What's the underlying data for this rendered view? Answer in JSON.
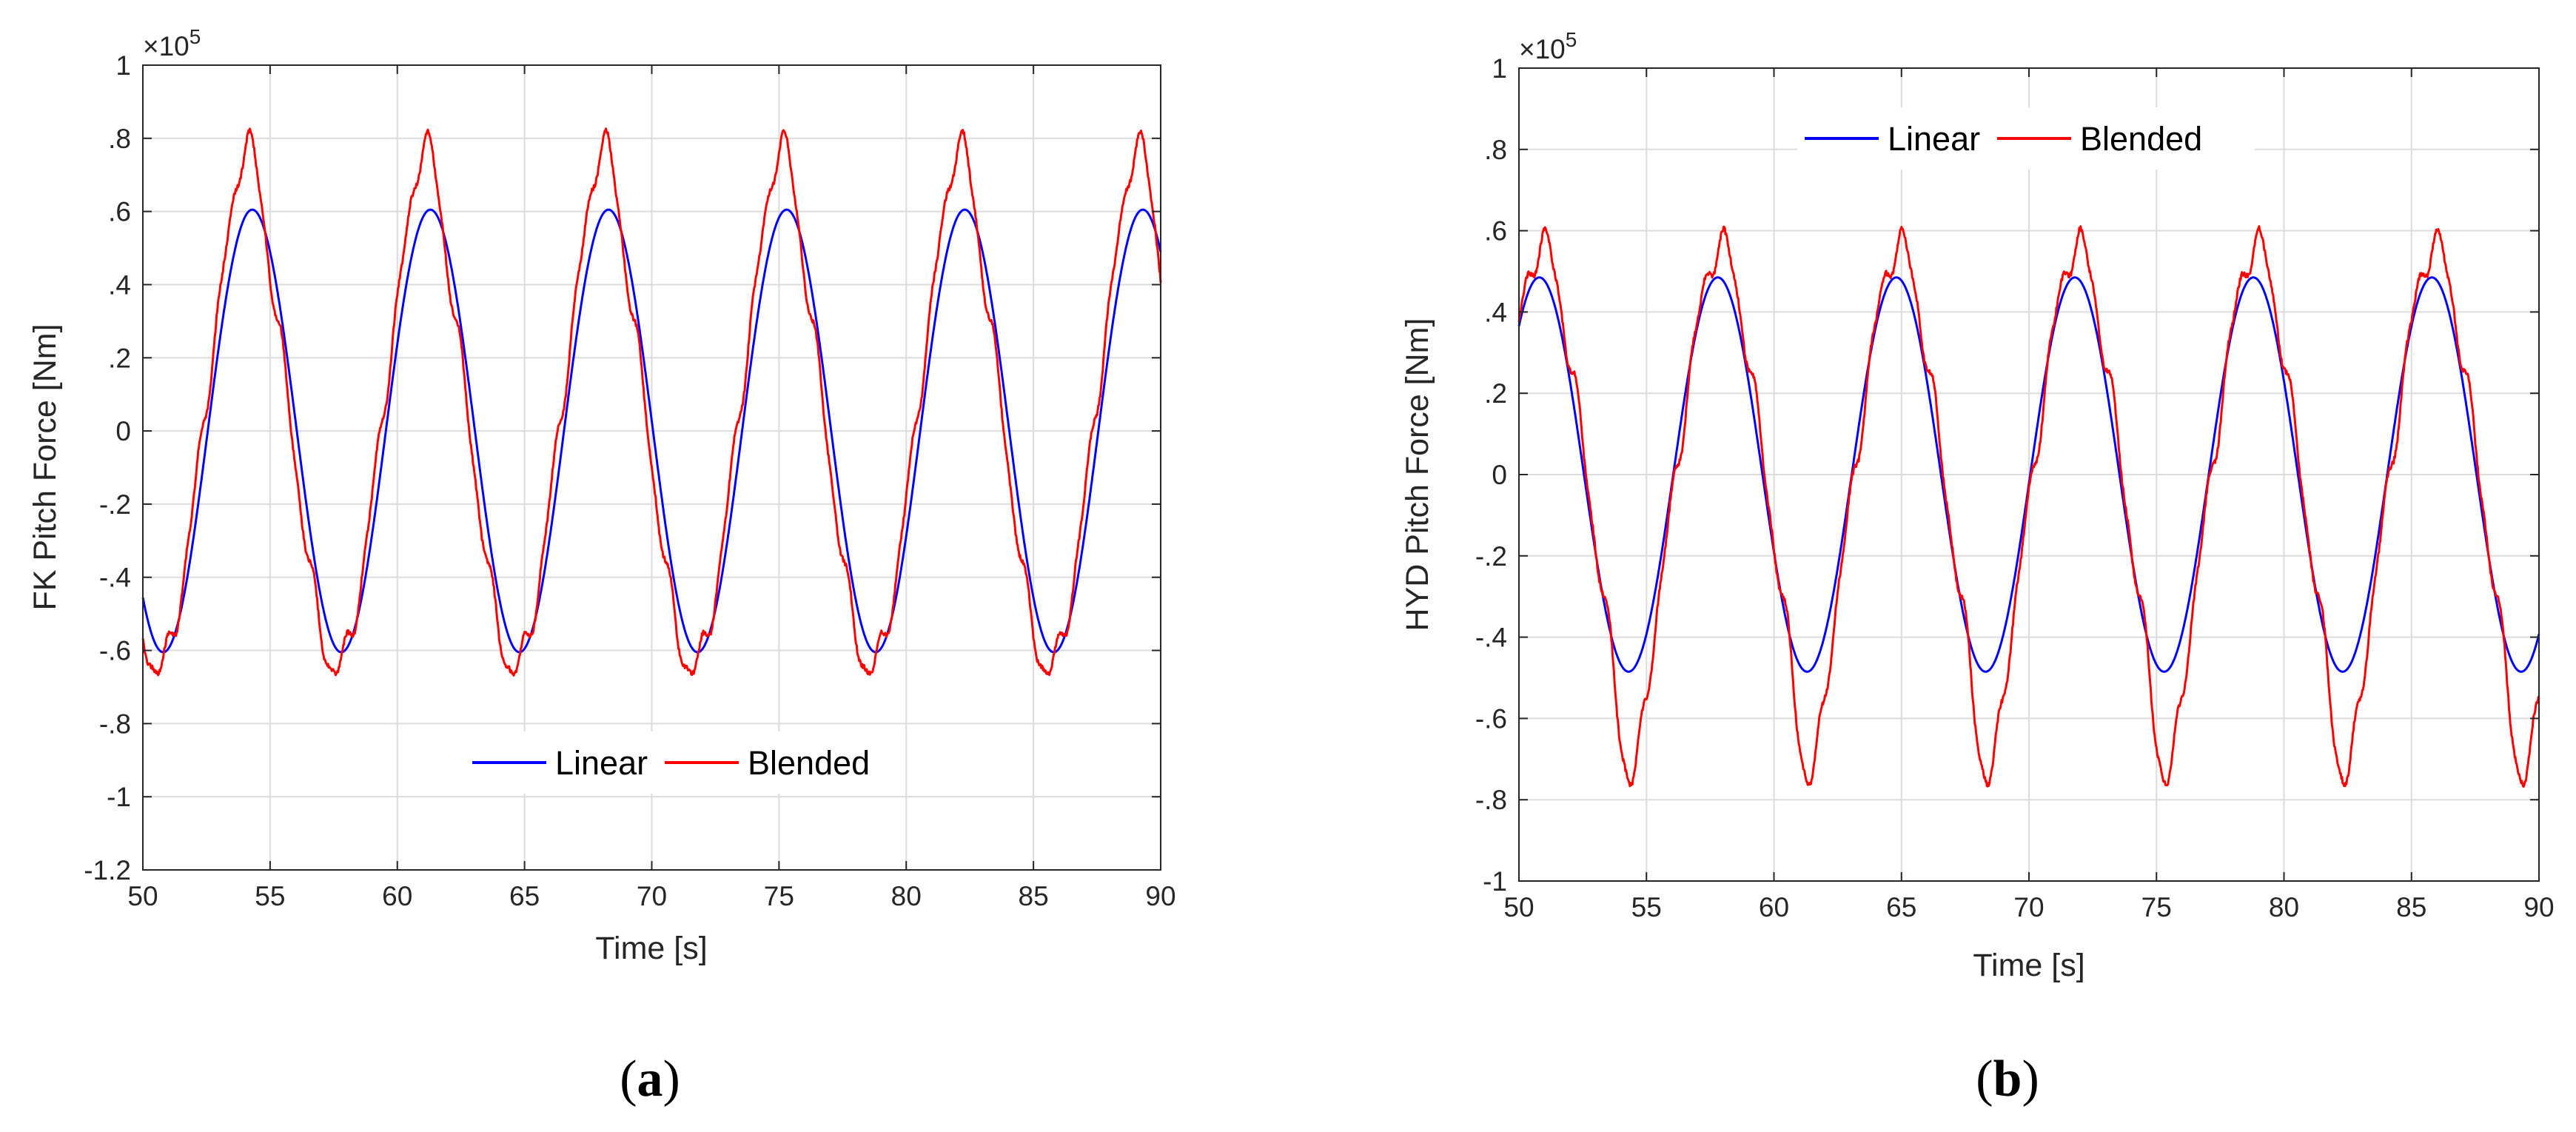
{
  "chart_data": [
    {
      "id": "a",
      "type": "line",
      "caption": "a",
      "xlabel": "Time [s]",
      "ylabel": "FK Pitch Force [Nm]",
      "xlim": [
        50,
        90
      ],
      "ylim": [
        -1.2,
        1
      ],
      "y_exponent": "5",
      "x_ticks": [
        50,
        55,
        60,
        65,
        70,
        75,
        80,
        85,
        90
      ],
      "y_ticks": [
        -1.2,
        -1,
        -0.8,
        -0.6,
        -0.4,
        -0.2,
        0,
        0.2,
        0.4,
        0.6,
        0.8,
        1
      ],
      "grid": true,
      "legend_position": "lower center",
      "series": [
        {
          "name": "Linear",
          "color": "#0000ff",
          "model": {
            "kind": "sine",
            "amplitude": 0.605,
            "period": 7.0,
            "peak_time": 54.3
          }
        },
        {
          "name": "Blended",
          "color": "#ff0000",
          "model": {
            "kind": "sine_nonlinear",
            "amplitude": 0.63,
            "period": 7.0,
            "peak_time": 54.1,
            "peak_max": 0.79,
            "trough_min": -0.65
          }
        }
      ]
    },
    {
      "id": "b",
      "type": "line",
      "caption": "b",
      "xlabel": "Time [s]",
      "ylabel": "HYD Pitch Force [Nm]",
      "xlim": [
        50,
        90
      ],
      "ylim": [
        -1,
        1
      ],
      "y_exponent": "5",
      "x_ticks": [
        50,
        55,
        60,
        65,
        70,
        75,
        80,
        85,
        90
      ],
      "y_ticks": [
        -1,
        -0.8,
        -0.6,
        -0.4,
        -0.2,
        0,
        0.2,
        0.4,
        0.6,
        0.8,
        1
      ],
      "grid": true,
      "legend_position": "upper center",
      "series": [
        {
          "name": "Linear",
          "color": "#0000ff",
          "model": {
            "kind": "sine",
            "amplitude": 0.485,
            "period": 7.0,
            "peak_time": 50.8
          }
        },
        {
          "name": "Blended",
          "color": "#ff0000",
          "model": {
            "kind": "sine_nonlinear",
            "amplitude": 0.52,
            "period": 7.0,
            "peak_time": 50.9,
            "peak_max": 0.57,
            "trough_min": -0.75
          }
        }
      ]
    }
  ]
}
